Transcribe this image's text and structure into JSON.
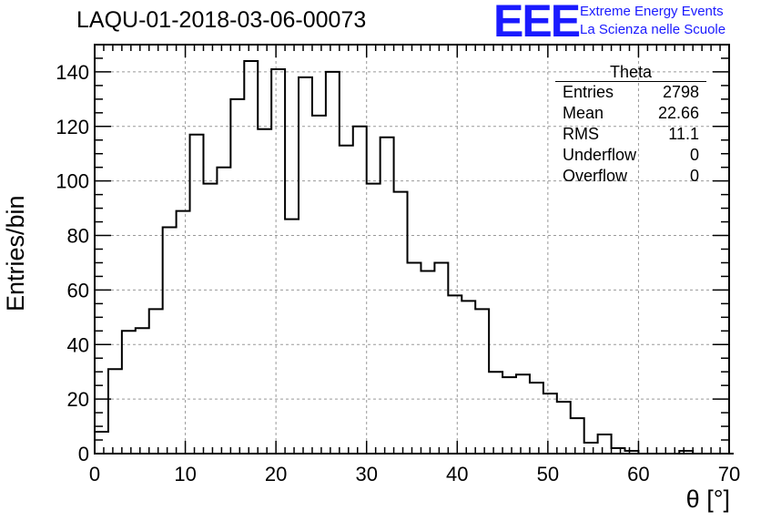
{
  "title": "LAQU-01-2018-03-06-00073",
  "logo": {
    "mark": "EEE",
    "line1": "Extreme Energy Events",
    "line2": "La Scienza nelle Scuole",
    "color": "#1a1aff"
  },
  "stats": {
    "title": "Theta",
    "rows": [
      {
        "label": "Entries",
        "value": "2798"
      },
      {
        "label": "Mean",
        "value": "22.66"
      },
      {
        "label": "RMS",
        "value": "11.1"
      },
      {
        "label": "Underflow",
        "value": "0"
      },
      {
        "label": "Overflow",
        "value": "0"
      }
    ]
  },
  "chart_data": {
    "type": "bar",
    "style": "step-histogram",
    "xlabel": "θ [°]",
    "ylabel": "Entries/bin",
    "xlim": [
      0,
      70
    ],
    "ylim": [
      0,
      150
    ],
    "grid": true,
    "bin_width": 1.5,
    "x_ticks": [
      0,
      10,
      20,
      30,
      40,
      50,
      60,
      70
    ],
    "y_ticks": [
      0,
      20,
      40,
      60,
      80,
      100,
      120,
      140
    ],
    "values": [
      8,
      31,
      45,
      46,
      53,
      83,
      89,
      117,
      99,
      105,
      130,
      144,
      119,
      141,
      86,
      138,
      124,
      140,
      113,
      120,
      99,
      116,
      96,
      70,
      67,
      70,
      58,
      56,
      53,
      30,
      28,
      29,
      26,
      22,
      19,
      13,
      4,
      7,
      2,
      1,
      0,
      0,
      0,
      1,
      0,
      0,
      0
    ],
    "line_color": "#000000"
  }
}
